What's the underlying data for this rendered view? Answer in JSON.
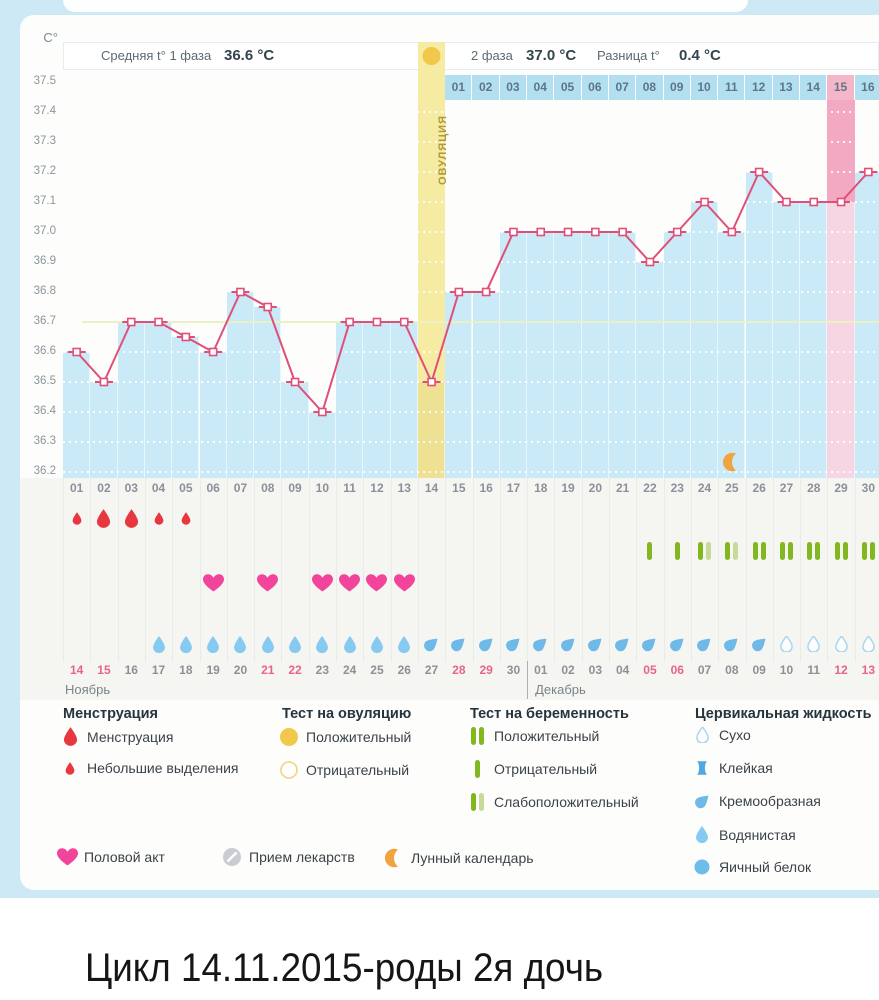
{
  "page": {
    "caption": "Цикл 14.11.2015-роды 2я дочь"
  },
  "header": {
    "unit_label": "C°",
    "avg_phase1_label": "Средняя t° 1 фаза",
    "avg_phase1_value": "36.6 °C",
    "phase2_label": "2 фаза",
    "phase2_value": "37.0 °C",
    "diff_label": "Разница t°",
    "diff_value": "0.4 °C",
    "ovulation_label": "ОВУЛЯЦИЯ"
  },
  "chart_data": {
    "type": "line",
    "ylabel": "C°",
    "ylim": [
      36.2,
      37.5
    ],
    "yticks": [
      "37.5",
      "37.4",
      "37.3",
      "37.2",
      "37.1",
      "37.0",
      "36.9",
      "36.8",
      "36.7",
      "36.6",
      "36.5",
      "36.4",
      "36.3",
      "36.2"
    ],
    "cycle_days": [
      "01",
      "02",
      "03",
      "04",
      "05",
      "06",
      "07",
      "08",
      "09",
      "10",
      "11",
      "12",
      "13",
      "14",
      "15",
      "16",
      "17",
      "18",
      "19",
      "20",
      "21",
      "22",
      "23",
      "24",
      "25",
      "26",
      "27",
      "28",
      "29",
      "30"
    ],
    "phase2_days": [
      "01",
      "02",
      "03",
      "04",
      "05",
      "06",
      "07",
      "08",
      "09",
      "10",
      "11",
      "12",
      "13",
      "14",
      "15",
      "16"
    ],
    "phase2_highlight_label": "15",
    "temps": [
      36.6,
      36.5,
      36.7,
      36.7,
      36.65,
      36.6,
      36.8,
      36.75,
      36.5,
      36.4,
      36.7,
      36.7,
      36.7,
      36.5,
      36.8,
      36.8,
      37.0,
      37.0,
      37.0,
      37.0,
      37.0,
      36.9,
      37.0,
      37.1,
      37.0,
      37.2,
      37.1,
      37.1,
      37.1,
      37.2
    ],
    "ovulation_day": 14,
    "highlight_day": 29,
    "coverline": 36.7,
    "moon_day": 25,
    "menstruation": [
      {
        "day": 1,
        "size": "small"
      },
      {
        "day": 2,
        "size": "big"
      },
      {
        "day": 3,
        "size": "big"
      },
      {
        "day": 4,
        "size": "small"
      },
      {
        "day": 5,
        "size": "small"
      }
    ],
    "pregnancy_tests": [
      {
        "day": 22,
        "result": "negative"
      },
      {
        "day": 23,
        "result": "negative"
      },
      {
        "day": 24,
        "result": "weak"
      },
      {
        "day": 25,
        "result": "weak"
      },
      {
        "day": 26,
        "result": "positive"
      },
      {
        "day": 27,
        "result": "positive"
      },
      {
        "day": 28,
        "result": "positive"
      },
      {
        "day": 29,
        "result": "positive"
      },
      {
        "day": 30,
        "result": "positive"
      }
    ],
    "intercourse_days": [
      6,
      8,
      10,
      11,
      12,
      13
    ],
    "cervical": [
      {
        "day": 4,
        "type": "watery"
      },
      {
        "day": 5,
        "type": "watery"
      },
      {
        "day": 6,
        "type": "watery"
      },
      {
        "day": 7,
        "type": "watery"
      },
      {
        "day": 8,
        "type": "watery"
      },
      {
        "day": 9,
        "type": "watery"
      },
      {
        "day": 10,
        "type": "watery"
      },
      {
        "day": 11,
        "type": "watery"
      },
      {
        "day": 12,
        "type": "watery"
      },
      {
        "day": 13,
        "type": "watery"
      },
      {
        "day": 14,
        "type": "creamy"
      },
      {
        "day": 15,
        "type": "creamy"
      },
      {
        "day": 16,
        "type": "creamy"
      },
      {
        "day": 17,
        "type": "creamy"
      },
      {
        "day": 18,
        "type": "creamy"
      },
      {
        "day": 19,
        "type": "creamy"
      },
      {
        "day": 20,
        "type": "creamy"
      },
      {
        "day": 21,
        "type": "creamy"
      },
      {
        "day": 22,
        "type": "creamy"
      },
      {
        "day": 23,
        "type": "creamy"
      },
      {
        "day": 24,
        "type": "creamy"
      },
      {
        "day": 25,
        "type": "creamy"
      },
      {
        "day": 26,
        "type": "creamy"
      },
      {
        "day": 27,
        "type": "dry"
      },
      {
        "day": 28,
        "type": "dry"
      },
      {
        "day": 29,
        "type": "dry"
      },
      {
        "day": 30,
        "type": "dry"
      }
    ],
    "dates": [
      "14",
      "15",
      "16",
      "17",
      "18",
      "19",
      "20",
      "21",
      "22",
      "23",
      "24",
      "25",
      "26",
      "27",
      "28",
      "29",
      "30",
      "01",
      "02",
      "03",
      "04",
      "05",
      "06",
      "07",
      "08",
      "09",
      "10",
      "11",
      "12",
      "13"
    ],
    "weekend_indices": [
      0,
      1,
      7,
      8,
      14,
      15,
      21,
      22,
      28,
      29
    ],
    "months": [
      {
        "label": "Ноябрь",
        "start_index": 0
      },
      {
        "label": "Декабрь",
        "start_index": 17
      }
    ]
  },
  "legend": {
    "menstruation": {
      "title": "Менструация",
      "items": [
        {
          "icon": "drop-big-icon",
          "label": "Менструация"
        },
        {
          "icon": "drop-small-icon",
          "label": "Небольшие выделения"
        }
      ]
    },
    "ovulation_test": {
      "title": "Тест на овуляцию",
      "items": [
        {
          "icon": "circle-yellow-filled-icon",
          "label": "Положительный"
        },
        {
          "icon": "circle-yellow-outline-icon",
          "label": "Отрицательный"
        }
      ]
    },
    "pregnancy_test": {
      "title": "Тест на беременность",
      "items": [
        {
          "icon": "bars-positive-icon",
          "label": "Положительный"
        },
        {
          "icon": "bar-negative-icon",
          "label": "Отрицательный"
        },
        {
          "icon": "bars-weak-icon",
          "label": "Слабоположительный"
        }
      ]
    },
    "cervical": {
      "title": "Цервикальная жидкость",
      "items": [
        {
          "icon": "drop-outline-icon",
          "label": "Сухо"
        },
        {
          "icon": "sticky-icon",
          "label": "Клейкая"
        },
        {
          "icon": "comma-icon",
          "label": "Кремообразная"
        },
        {
          "icon": "drop-watery-icon",
          "label": "Водянистая"
        },
        {
          "icon": "circle-blue-icon",
          "label": "Яичный белок"
        }
      ]
    },
    "extra": [
      {
        "icon": "heart-icon",
        "label": "Половой акт"
      },
      {
        "icon": "pill-icon",
        "label": "Прием лекарств"
      },
      {
        "icon": "moon-icon",
        "label": "Лунный календарь"
      }
    ]
  },
  "colors": {
    "line": "#df4f78",
    "plot_bg": "#8ed2ec",
    "bar": "#caeaf7",
    "ovulation_col": "#f5eba3",
    "ovulation_bar": "#eee193",
    "highlight_col": "#f2a9c1",
    "highlight_bar": "#f7d6e3",
    "strip_highlight": "#f3b7c9",
    "menstruation_red": "#e8383f",
    "preg_green": "#82b71f",
    "preg_pale": "#c6db97",
    "heart_pink": "#f2449b",
    "watery_blue": "#85caf0",
    "creamy_blue": "#6fb9e8",
    "dry_stroke": "#a6d5ee",
    "moon_orange": "#f0a33f",
    "ovu_test_yellow": "#f2c84b",
    "weekend_pink": "#e8638a",
    "date_gray": "#8c9196"
  }
}
